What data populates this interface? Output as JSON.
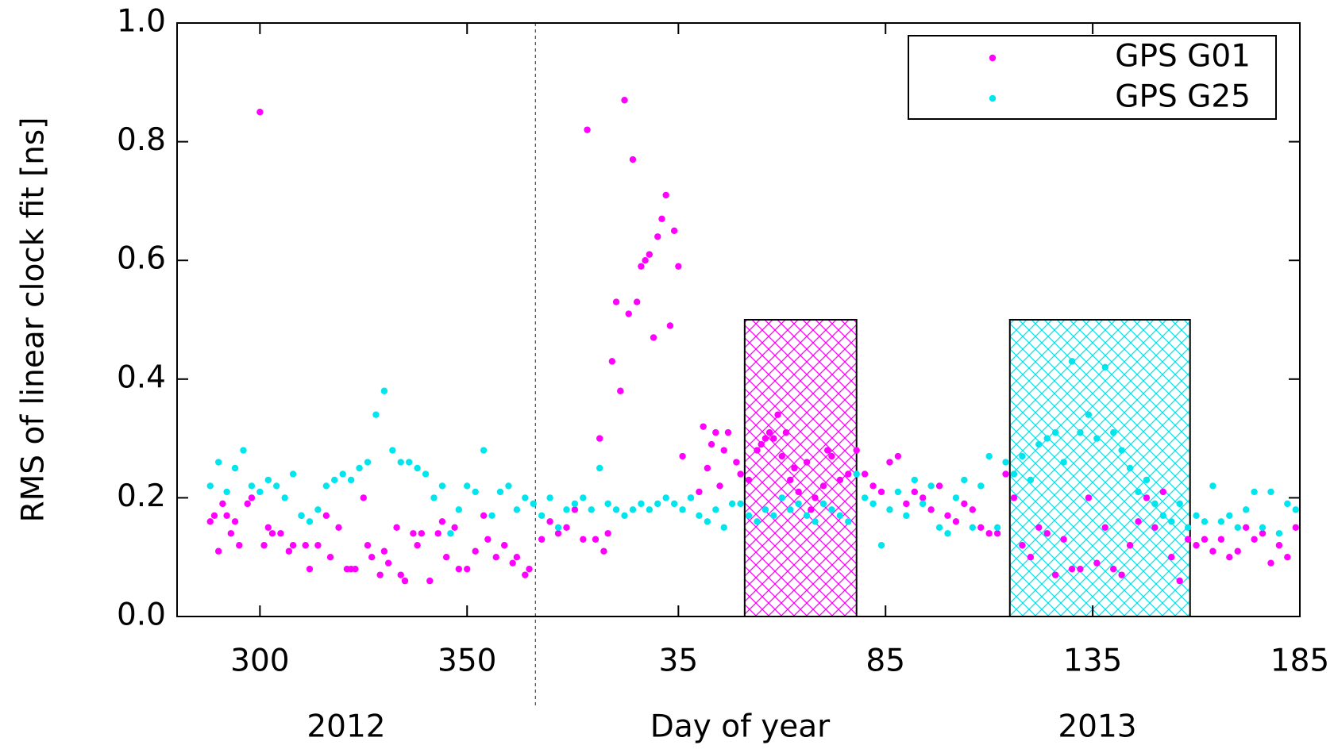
{
  "chart_data": {
    "type": "scatter",
    "ylabel": "RMS of linear clock fit [ns]",
    "xlabel": "Day of year",
    "year_labels": [
      "2012",
      "2013"
    ],
    "year_boundary": 366.5,
    "xlim": [
      280,
      551
    ],
    "xticks": [
      300,
      350,
      {
        "value": 401,
        "label": "35"
      },
      {
        "value": 451,
        "label": "85"
      },
      {
        "value": 501,
        "label": "135"
      },
      {
        "value": 551,
        "label": "185"
      }
    ],
    "ylim": [
      0,
      1
    ],
    "yticks": [
      {
        "value": 0,
        "label": "0.0"
      },
      0.2,
      0.4,
      0.6,
      0.8,
      {
        "value": 1,
        "label": "1.0"
      }
    ],
    "legend": "upper right",
    "highlight_regions": [
      {
        "x": [
          417,
          444
        ],
        "y": [
          0,
          0.5
        ],
        "color": "#ff00ff"
      },
      {
        "x": [
          481,
          524.5
        ],
        "y": [
          0,
          0.5
        ],
        "color": "#00e5ee"
      }
    ],
    "series": [
      {
        "name": "GPS G01",
        "color": "#ff00ff",
        "x": [
          288,
          289,
          290,
          291,
          292,
          293,
          294,
          295,
          297,
          298,
          300,
          301,
          302,
          303,
          305,
          307,
          308,
          310,
          311,
          312,
          314,
          316,
          317,
          319,
          321,
          322,
          323,
          325,
          326,
          327,
          329,
          330,
          331,
          333,
          334,
          335,
          337,
          338,
          339,
          341,
          343,
          344,
          345,
          347,
          348,
          350,
          352,
          354,
          355,
          357,
          359,
          361,
          362,
          364,
          365,
          368,
          370,
          372,
          374,
          376,
          378,
          379,
          381,
          382,
          383,
          384,
          385,
          386,
          387,
          388,
          389,
          390,
          391,
          392,
          393,
          394,
          395,
          396,
          397,
          398,
          399,
          400,
          401,
          402,
          404,
          406,
          407,
          408,
          409,
          410,
          411,
          412,
          413,
          415,
          416,
          418,
          420,
          421,
          422,
          423,
          424,
          425,
          426,
          427,
          428,
          429,
          430,
          432,
          433,
          434,
          436,
          437,
          438,
          440,
          442,
          444,
          446,
          448,
          450,
          452,
          454,
          456,
          458,
          460,
          462,
          464,
          466,
          468,
          470,
          472,
          474,
          476,
          478,
          480,
          482,
          484,
          486,
          488,
          490,
          492,
          494,
          496,
          498,
          500,
          502,
          504,
          506,
          508,
          510,
          512,
          514,
          516,
          518,
          520,
          522,
          524,
          526,
          528,
          530,
          532,
          534,
          536,
          538,
          540,
          542,
          544,
          546,
          548,
          550
        ],
        "values": [
          0.16,
          0.17,
          0.11,
          0.19,
          0.17,
          0.14,
          0.16,
          0.12,
          0.19,
          0.2,
          0.85,
          0.12,
          0.15,
          0.14,
          0.14,
          0.11,
          0.12,
          0.17,
          0.12,
          0.08,
          0.12,
          0.17,
          0.1,
          0.15,
          0.08,
          0.08,
          0.08,
          0.2,
          0.12,
          0.1,
          0.07,
          0.11,
          0.09,
          0.15,
          0.07,
          0.06,
          0.14,
          0.12,
          0.14,
          0.06,
          0.14,
          0.16,
          0.1,
          0.15,
          0.08,
          0.08,
          0.11,
          0.17,
          0.13,
          0.1,
          0.12,
          0.09,
          0.1,
          0.07,
          0.08,
          0.13,
          0.16,
          0.14,
          0.15,
          0.18,
          0.13,
          0.82,
          0.13,
          0.3,
          0.11,
          0.14,
          0.43,
          0.53,
          0.38,
          0.87,
          0.51,
          0.77,
          0.53,
          0.59,
          0.6,
          0.61,
          0.47,
          0.64,
          0.67,
          0.71,
          0.49,
          0.65,
          0.59,
          0.27,
          0.2,
          0.21,
          0.32,
          0.25,
          0.29,
          0.31,
          0.22,
          0.28,
          0.31,
          0.26,
          0.24,
          0.23,
          0.28,
          0.29,
          0.3,
          0.31,
          0.3,
          0.34,
          0.27,
          0.31,
          0.23,
          0.25,
          0.21,
          0.26,
          0.18,
          0.2,
          0.22,
          0.28,
          0.27,
          0.23,
          0.24,
          0.28,
          0.24,
          0.22,
          0.21,
          0.26,
          0.27,
          0.19,
          0.21,
          0.2,
          0.18,
          0.22,
          0.17,
          0.16,
          0.19,
          0.18,
          0.15,
          0.14,
          0.14,
          0.24,
          0.2,
          0.12,
          0.1,
          0.15,
          0.14,
          0.07,
          0.13,
          0.08,
          0.08,
          0.2,
          0.09,
          0.15,
          0.08,
          0.07,
          0.12,
          0.16,
          0.2,
          0.15,
          0.21,
          0.1,
          0.06,
          0.13,
          0.12,
          0.13,
          0.11,
          0.13,
          0.1,
          0.11,
          0.15,
          0.13,
          0.14,
          0.09,
          0.12,
          0.1,
          0.15
        ]
      },
      {
        "name": "GPS G25",
        "color": "#00e5ee",
        "x": [
          288,
          290,
          292,
          294,
          296,
          298,
          300,
          302,
          304,
          306,
          308,
          310,
          312,
          314,
          316,
          318,
          320,
          322,
          324,
          326,
          328,
          330,
          332,
          334,
          336,
          338,
          340,
          342,
          344,
          346,
          348,
          350,
          352,
          354,
          356,
          358,
          360,
          362,
          364,
          366,
          368,
          370,
          372,
          374,
          376,
          378,
          380,
          382,
          384,
          386,
          388,
          390,
          392,
          394,
          396,
          398,
          400,
          402,
          404,
          406,
          408,
          410,
          412,
          414,
          416,
          418,
          420,
          422,
          424,
          426,
          428,
          430,
          432,
          434,
          436,
          438,
          440,
          442,
          444,
          446,
          448,
          450,
          452,
          454,
          456,
          458,
          460,
          462,
          464,
          466,
          468,
          470,
          472,
          474,
          476,
          478,
          480,
          482,
          484,
          486,
          488,
          490,
          492,
          494,
          496,
          498,
          500,
          502,
          504,
          506,
          508,
          510,
          512,
          514,
          516,
          518,
          520,
          522,
          524,
          526,
          528,
          530,
          532,
          534,
          536,
          538,
          540,
          542,
          544,
          546,
          548,
          550
        ],
        "values": [
          0.22,
          0.26,
          0.21,
          0.25,
          0.28,
          0.22,
          0.21,
          0.23,
          0.22,
          0.2,
          0.24,
          0.17,
          0.16,
          0.18,
          0.22,
          0.23,
          0.24,
          0.23,
          0.25,
          0.26,
          0.34,
          0.38,
          0.28,
          0.26,
          0.26,
          0.25,
          0.24,
          0.2,
          0.22,
          0.14,
          0.18,
          0.22,
          0.21,
          0.28,
          0.17,
          0.21,
          0.22,
          0.18,
          0.2,
          0.19,
          0.17,
          0.2,
          0.15,
          0.18,
          0.19,
          0.2,
          0.18,
          0.25,
          0.19,
          0.18,
          0.17,
          0.18,
          0.19,
          0.18,
          0.19,
          0.2,
          0.19,
          0.18,
          0.2,
          0.17,
          0.16,
          0.18,
          0.15,
          0.19,
          0.19,
          0.17,
          0.16,
          0.18,
          0.17,
          0.2,
          0.18,
          0.19,
          0.17,
          0.16,
          0.19,
          0.18,
          0.17,
          0.16,
          0.24,
          0.2,
          0.19,
          0.12,
          0.18,
          0.21,
          0.17,
          0.23,
          0.19,
          0.22,
          0.15,
          0.14,
          0.2,
          0.23,
          0.15,
          0.22,
          0.27,
          0.15,
          0.26,
          0.24,
          0.27,
          0.23,
          0.29,
          0.3,
          0.31,
          0.26,
          0.43,
          0.31,
          0.34,
          0.3,
          0.42,
          0.31,
          0.28,
          0.25,
          0.21,
          0.23,
          0.19,
          0.17,
          0.16,
          0.19,
          0.15,
          0.17,
          0.16,
          0.22,
          0.16,
          0.17,
          0.15,
          0.18,
          0.21,
          0.15,
          0.21,
          0.14,
          0.19,
          0.18
        ]
      }
    ]
  }
}
